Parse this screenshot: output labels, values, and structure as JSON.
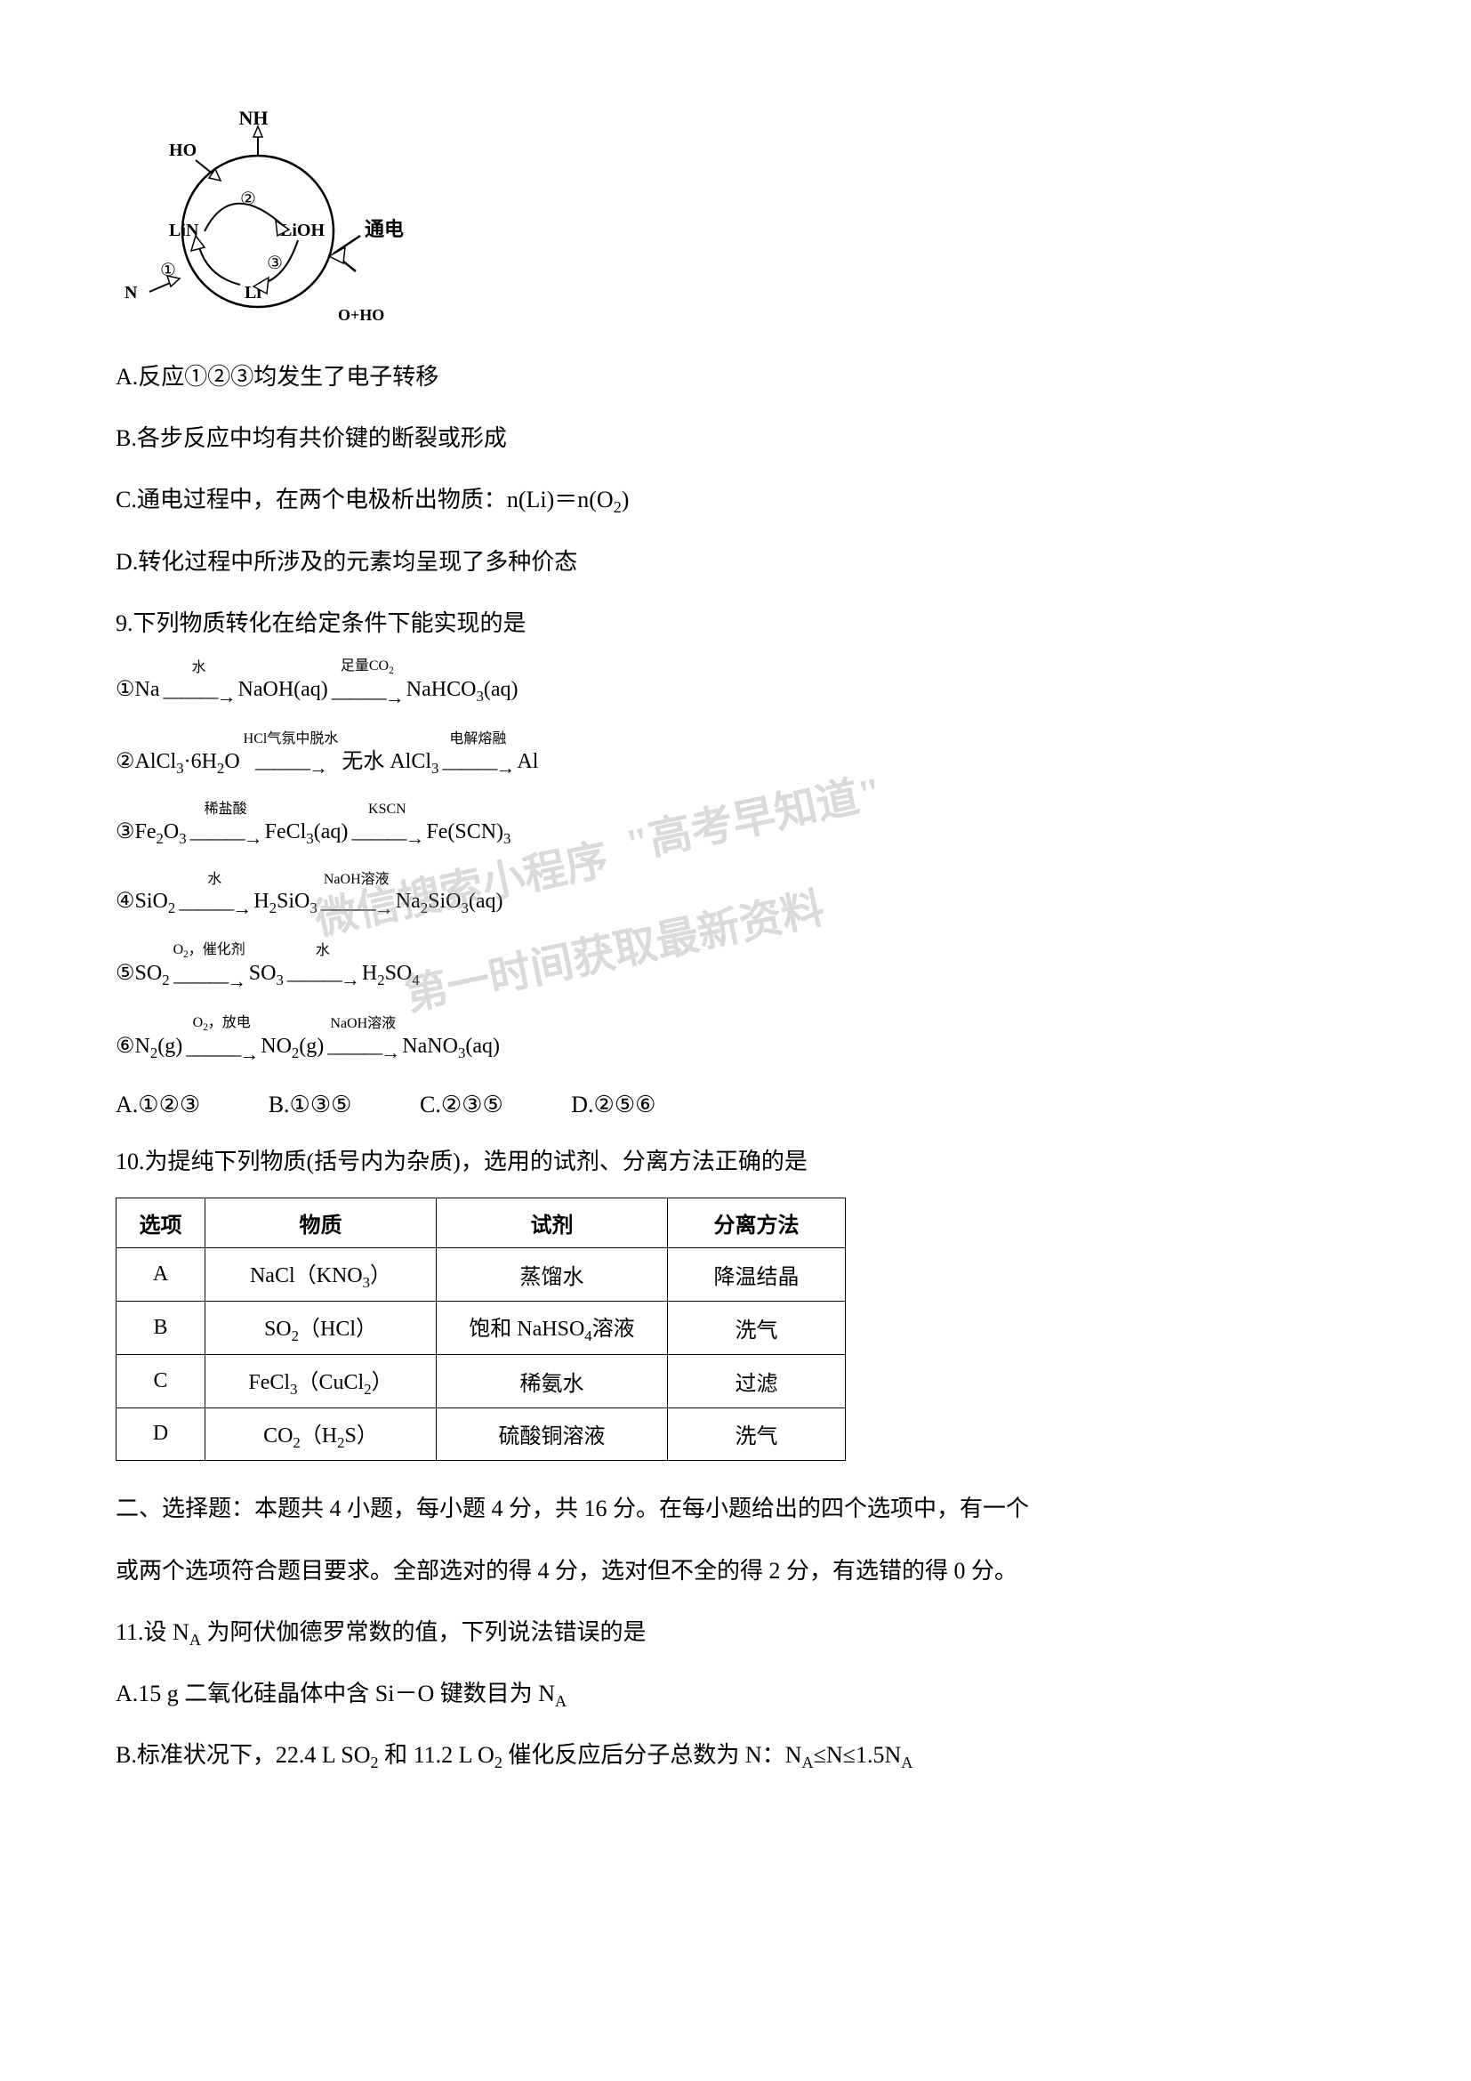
{
  "diagram": {
    "labels": {
      "nh3": "NH₃",
      "h2o": "H₂O",
      "li3n": "Li₃N",
      "lioh": "LiOH",
      "li": "Li",
      "n2": "N₂",
      "o2h2o": "O₂+H₂O",
      "dian": "通电",
      "c1": "①",
      "c2": "②",
      "c3": "③"
    },
    "colors": {
      "stroke": "#000000",
      "bg": "#ffffff"
    }
  },
  "q8": {
    "A": "A.反应①②③均发生了电子转移",
    "B": "B.各步反应中均有共价键的断裂或形成",
    "C": "C.通电过程中，在两个电极析出物质：n(Li)＝n(O₂)",
    "D": "D.转化过程中所涉及的元素均呈现了多种价态"
  },
  "q9": {
    "stem": "9.下列物质转化在给定条件下能实现的是",
    "reactions": [
      {
        "num": "①",
        "steps": [
          "Na",
          "水",
          "NaOH(aq)",
          "足量CO₂",
          "NaHCO₃(aq)"
        ]
      },
      {
        "num": "②",
        "steps": [
          "AlCl₃·6H₂O",
          "HCl气氛中脱水",
          "无水 AlCl₃",
          "电解熔融",
          "Al"
        ]
      },
      {
        "num": "③",
        "steps": [
          "Fe₂O₃",
          "稀盐酸",
          "FeCl₃(aq)",
          "KSCN",
          "Fe(SCN)₃"
        ]
      },
      {
        "num": "④",
        "steps": [
          "SiO₂",
          "水",
          "H₂SiO₃",
          "NaOH溶液",
          "Na₂SiO₃(aq)"
        ]
      },
      {
        "num": "⑤",
        "steps": [
          "SO₂",
          "O₂，催化剂",
          "SO₃",
          "水",
          "H₂SO₄"
        ]
      },
      {
        "num": "⑥",
        "steps": [
          "N₂(g)",
          "O₂，放电",
          "NO₂(g)",
          "NaOH溶液",
          "NaNO₃(aq)"
        ]
      }
    ],
    "options": {
      "A": "A.①②③",
      "B": "B.①③⑤",
      "C": "C.②③⑤",
      "D": "D.②⑤⑥"
    }
  },
  "q10": {
    "stem": "10.为提纯下列物质(括号内为杂质)，选用的试剂、分离方法正确的是",
    "headers": [
      "选项",
      "物质",
      "试剂",
      "分离方法"
    ],
    "rows": [
      [
        "A",
        "NaCl（KNO₃）",
        "蒸馏水",
        "降温结晶"
      ],
      [
        "B",
        "SO₂（HCl）",
        "饱和 NaHSO₄溶液",
        "洗气"
      ],
      [
        "C",
        "FeCl₃（CuCl₂）",
        "稀氨水",
        "过滤"
      ],
      [
        "D",
        "CO₂（H₂S）",
        "硫酸铜溶液",
        "洗气"
      ]
    ]
  },
  "section2": {
    "instr1": "二、选择题：本题共 4 小题，每小题 4 分，共 16 分。在每小题给出的四个选项中，有一个",
    "instr2": "或两个选项符合题目要求。全部选对的得 4 分，选对但不全的得 2 分，有选错的得 0 分。"
  },
  "q11": {
    "stem": "11.设 Nₐ 为阿伏伽德罗常数的值，下列说法错误的是",
    "A": "A.15 g 二氧化硅晶体中含 Si－O 键数目为 Nₐ",
    "B": "B.标准状况下，22.4 L SO₂ 和 11.2 L O₂ 催化反应后分子总数为 N：Nₐ≤N≤1.5Nₐ"
  },
  "watermarks": {
    "w1": "\"高考早知道\"",
    "w2": "微信搜索小程序",
    "w3": "第一时间获取最新资料"
  }
}
